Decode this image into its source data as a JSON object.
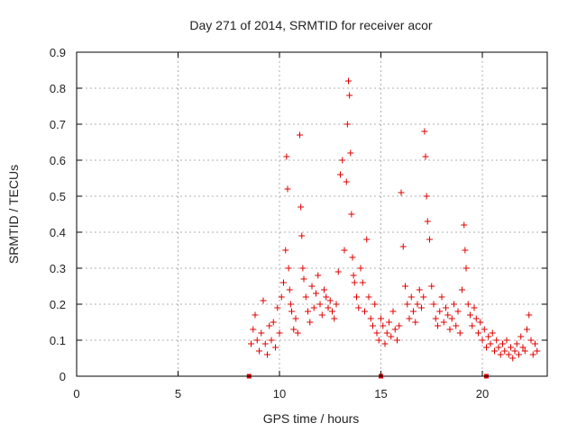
{
  "chart_data": {
    "type": "scatter",
    "title": "Day 271 of 2014, SRMTID for receiver acor",
    "xlabel": "GPS time / hours",
    "ylabel": "SRMTID / TECUs",
    "xlim": [
      0,
      23.2
    ],
    "ylim": [
      0,
      0.9
    ],
    "xticks": [
      0,
      5,
      10,
      15,
      20
    ],
    "xtick_labels": [
      "0",
      "5",
      "10",
      "15",
      "20"
    ],
    "yticks": [
      0,
      0.1,
      0.2,
      0.3,
      0.4,
      0.5,
      0.6,
      0.7,
      0.8,
      0.9
    ],
    "ytick_labels": [
      "0",
      "0.1",
      "0.2",
      "0.3",
      "0.4",
      "0.5",
      "0.6",
      "0.7",
      "0.8",
      "0.9"
    ],
    "grid": true,
    "marker": "plus",
    "color": "#e00000",
    "zero_markers": [
      8.5,
      15.0,
      20.2
    ],
    "series": [
      {
        "name": "SRMTID",
        "x": [
          8.6,
          8.7,
          8.8,
          8.9,
          9.0,
          9.1,
          9.2,
          9.3,
          9.4,
          9.5,
          9.6,
          9.7,
          9.8,
          9.9,
          10.0,
          10.1,
          10.2,
          10.3,
          10.35,
          10.4,
          10.45,
          10.5,
          10.55,
          10.6,
          10.7,
          10.8,
          10.9,
          11.0,
          11.05,
          11.1,
          11.15,
          11.2,
          11.3,
          11.4,
          11.5,
          11.6,
          11.7,
          11.8,
          11.9,
          12.0,
          12.1,
          12.2,
          12.3,
          12.4,
          12.5,
          12.6,
          12.7,
          12.8,
          12.9,
          13.0,
          13.1,
          13.2,
          13.3,
          13.35,
          13.4,
          13.45,
          13.5,
          13.55,
          13.6,
          13.65,
          13.7,
          13.8,
          13.9,
          14.0,
          14.1,
          14.2,
          14.3,
          14.4,
          14.5,
          14.6,
          14.7,
          14.8,
          14.9,
          15.0,
          15.1,
          15.2,
          15.3,
          15.4,
          15.5,
          15.6,
          15.7,
          15.8,
          15.9,
          16.0,
          16.1,
          16.2,
          16.3,
          16.4,
          16.5,
          16.6,
          16.7,
          16.8,
          16.9,
          17.0,
          17.1,
          17.15,
          17.2,
          17.25,
          17.3,
          17.4,
          17.5,
          17.6,
          17.7,
          17.8,
          17.9,
          18.0,
          18.1,
          18.2,
          18.3,
          18.4,
          18.5,
          18.6,
          18.7,
          18.8,
          18.9,
          19.0,
          19.1,
          19.15,
          19.2,
          19.3,
          19.4,
          19.5,
          19.6,
          19.7,
          19.8,
          19.9,
          20.0,
          20.1,
          20.2,
          20.3,
          20.4,
          20.5,
          20.6,
          20.7,
          20.8,
          20.9,
          21.0,
          21.1,
          21.2,
          21.3,
          21.4,
          21.5,
          21.6,
          21.7,
          21.8,
          21.9,
          22.0,
          22.1,
          22.2,
          22.3,
          22.4,
          22.5,
          22.6,
          22.7
        ],
        "y": [
          0.09,
          0.13,
          0.17,
          0.1,
          0.07,
          0.12,
          0.21,
          0.09,
          0.06,
          0.14,
          0.1,
          0.15,
          0.08,
          0.19,
          0.12,
          0.22,
          0.26,
          0.35,
          0.61,
          0.52,
          0.3,
          0.24,
          0.2,
          0.18,
          0.13,
          0.16,
          0.12,
          0.67,
          0.47,
          0.39,
          0.3,
          0.27,
          0.22,
          0.18,
          0.15,
          0.25,
          0.19,
          0.23,
          0.28,
          0.2,
          0.17,
          0.24,
          0.22,
          0.19,
          0.21,
          0.18,
          0.16,
          0.2,
          0.29,
          0.56,
          0.6,
          0.35,
          0.54,
          0.7,
          0.82,
          0.78,
          0.62,
          0.45,
          0.33,
          0.28,
          0.26,
          0.22,
          0.19,
          0.3,
          0.26,
          0.18,
          0.38,
          0.22,
          0.16,
          0.14,
          0.2,
          0.12,
          0.1,
          0.16,
          0.14,
          0.09,
          0.12,
          0.15,
          0.11,
          0.18,
          0.13,
          0.1,
          0.14,
          0.51,
          0.36,
          0.25,
          0.2,
          0.16,
          0.22,
          0.18,
          0.15,
          0.2,
          0.24,
          0.19,
          0.22,
          0.68,
          0.61,
          0.5,
          0.43,
          0.38,
          0.25,
          0.2,
          0.16,
          0.14,
          0.18,
          0.22,
          0.15,
          0.19,
          0.17,
          0.13,
          0.16,
          0.2,
          0.14,
          0.18,
          0.12,
          0.24,
          0.42,
          0.35,
          0.3,
          0.2,
          0.17,
          0.14,
          0.19,
          0.16,
          0.12,
          0.15,
          0.1,
          0.13,
          0.08,
          0.11,
          0.09,
          0.12,
          0.07,
          0.1,
          0.08,
          0.06,
          0.09,
          0.07,
          0.1,
          0.06,
          0.08,
          0.05,
          0.07,
          0.09,
          0.06,
          0.11,
          0.08,
          0.07,
          0.13,
          0.17,
          0.1,
          0.06,
          0.09,
          0.07
        ]
      }
    ]
  }
}
